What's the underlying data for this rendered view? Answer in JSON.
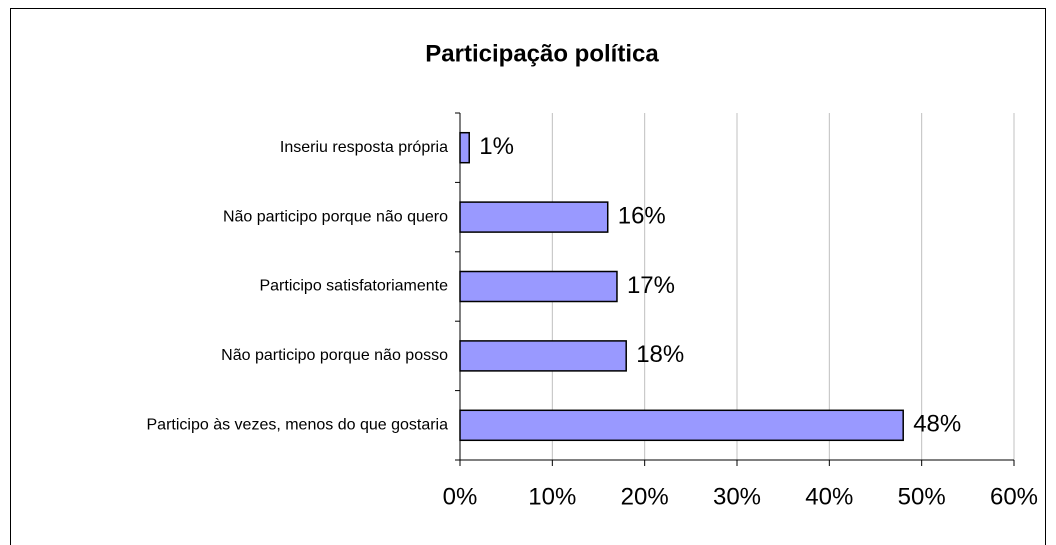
{
  "chart_data": {
    "type": "bar",
    "orientation": "horizontal",
    "title": "Participação política",
    "categories": [
      "Inseriu resposta própria",
      "Não participo porque não quero",
      "Participo satisfatoriamente",
      "Não participo porque não posso",
      "Participo às vezes, menos do que gostaria"
    ],
    "values": [
      1,
      16,
      17,
      18,
      48
    ],
    "value_labels": [
      "1%",
      "16%",
      "17%",
      "18%",
      "48%"
    ],
    "color": "#9999ff",
    "xlim": [
      0,
      60
    ],
    "xticks": [
      {
        "value": 0,
        "label": "0%"
      },
      {
        "value": 10,
        "label": "10%"
      },
      {
        "value": 20,
        "label": "20%"
      },
      {
        "value": 30,
        "label": "30%"
      },
      {
        "value": 40,
        "label": "40%"
      },
      {
        "value": 50,
        "label": "50%"
      },
      {
        "value": 60,
        "label": "60%"
      }
    ],
    "grid": true
  }
}
